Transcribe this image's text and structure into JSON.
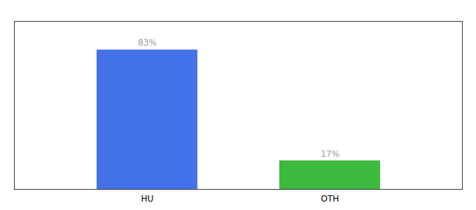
{
  "chart_data": {
    "type": "bar",
    "categories": [
      "HU",
      "OTH"
    ],
    "values": [
      83,
      17
    ],
    "value_labels": [
      "83%",
      "17%"
    ],
    "data_labels": true,
    "colors": [
      "#4472e8",
      "#3dba3d"
    ],
    "ylim": [
      0,
      100
    ],
    "grid": false,
    "tick_labels": "x"
  }
}
